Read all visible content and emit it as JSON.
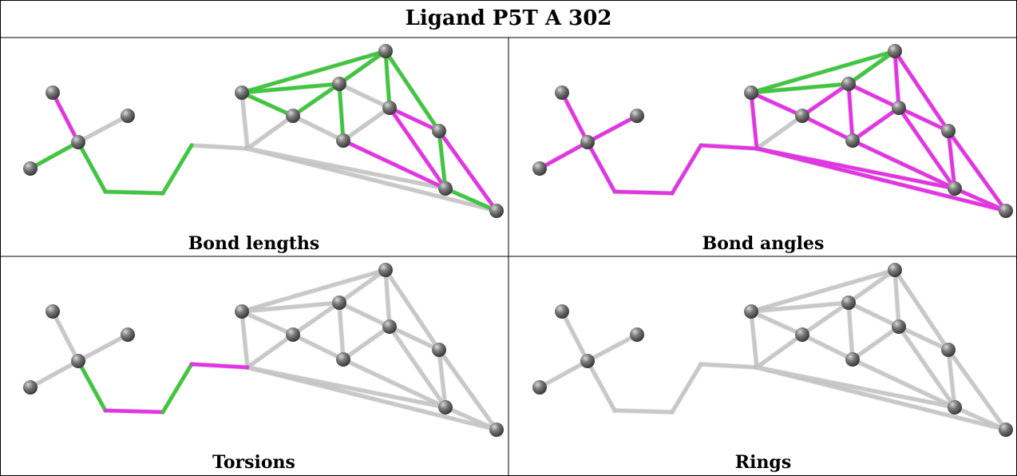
{
  "title": "Ligand P5T A 302",
  "panels": [
    {
      "caption": "Bond lengths"
    },
    {
      "caption": "Bond angles"
    },
    {
      "caption": "Torsions"
    },
    {
      "caption": "Rings"
    }
  ],
  "colors": {
    "bond_default": "#c8c8c8",
    "bond_green": "#3cc83c",
    "bond_magenta": "#e632e6",
    "atom": "#7a7a7a"
  }
}
